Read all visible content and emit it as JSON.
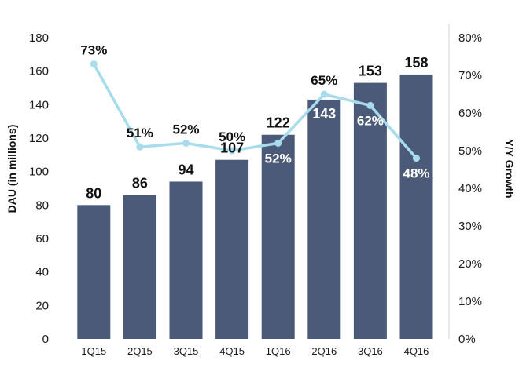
{
  "chart_data": {
    "type": "bar",
    "title": "",
    "categories": [
      "1Q15",
      "2Q15",
      "3Q15",
      "4Q15",
      "1Q16",
      "2Q16",
      "3Q16",
      "4Q16"
    ],
    "series": [
      {
        "name": "DAU (in millions)",
        "type": "bar",
        "axis": "left",
        "values": [
          80,
          86,
          94,
          107,
          122,
          143,
          153,
          158
        ],
        "color": "#4a5a78"
      },
      {
        "name": "Y/Y Growth",
        "type": "line",
        "axis": "right",
        "values": [
          73,
          51,
          52,
          50,
          52,
          65,
          62,
          48
        ],
        "color": "#a8dcec"
      }
    ],
    "bar_labels": [
      "80",
      "86",
      "94",
      "107",
      "122",
      "143",
      "153",
      "158"
    ],
    "growth_labels": [
      "73%",
      "51%",
      "52%",
      "50%",
      "52%",
      "65%",
      "62%",
      "48%"
    ],
    "ylabel": "DAU (in millions)",
    "ylabel_right": "Y/Y Growth",
    "ylim": [
      0,
      180
    ],
    "yticks": [
      "0",
      "20",
      "40",
      "60",
      "80",
      "100",
      "120",
      "140",
      "160",
      "180"
    ],
    "ylim_right": [
      0,
      80
    ],
    "yticks_right": [
      "0%",
      "10%",
      "20%",
      "30%",
      "40%",
      "50%",
      "60%",
      "70%",
      "80%"
    ],
    "grid": false
  }
}
